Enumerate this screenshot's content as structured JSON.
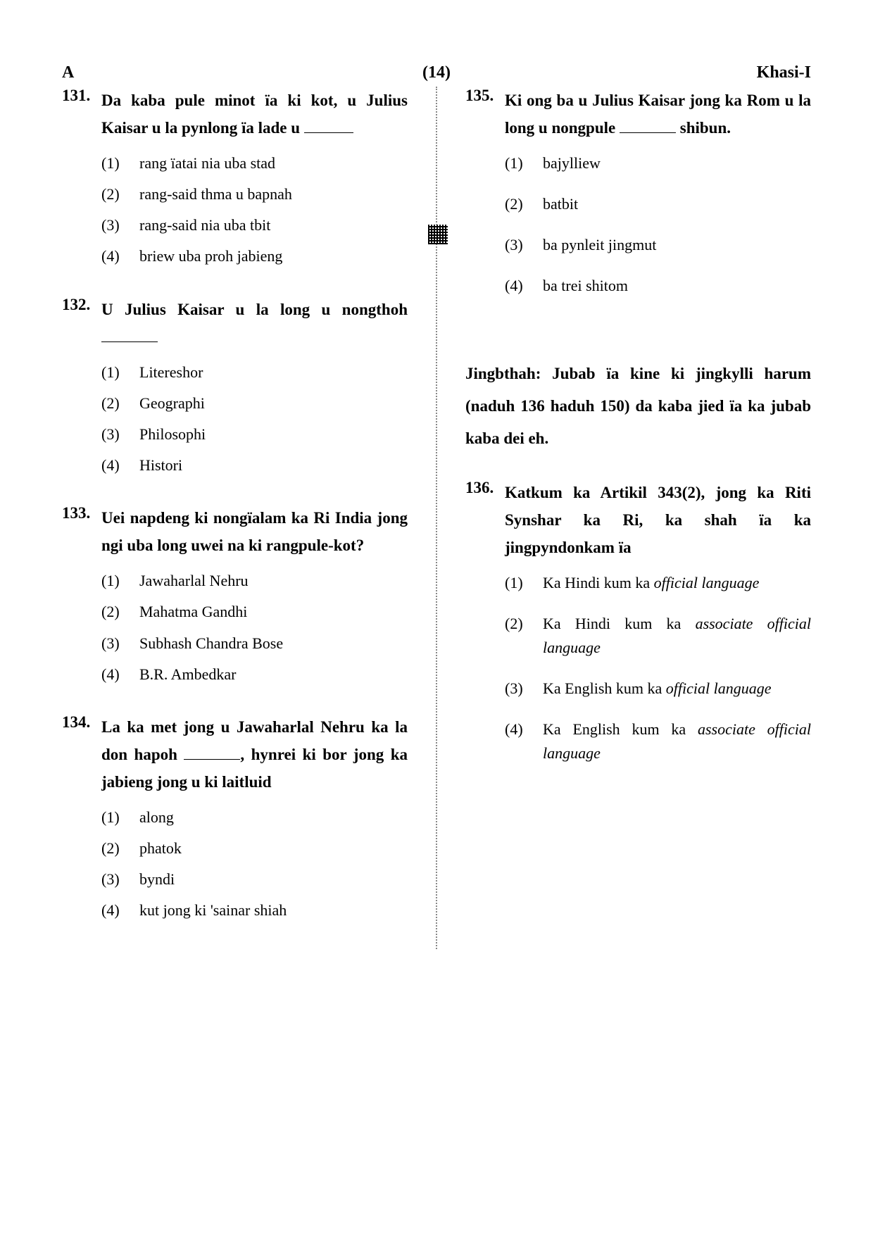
{
  "header": {
    "left": "A",
    "center": "(14)",
    "right": "Khasi-I"
  },
  "left_column": [
    {
      "num": "131.",
      "text_html": "Da kaba pule minot ïa ki kot, u Julius Kaisar u la pynlong ïa lade u <span class=\"blank\" style=\"width:70px\"></span>",
      "options": [
        "rang ïatai nia uba stad",
        "rang-said thma u bapnah",
        "rang-said nia uba tbit",
        "briew uba proh jabieng"
      ]
    },
    {
      "num": "132.",
      "text_html": "U Julius Kaisar u la long u nongthoh <span class=\"blank\" style=\"width:80px\"></span>",
      "options": [
        "Litereshor",
        "Geographi",
        "Philosophi",
        "Histori"
      ]
    },
    {
      "num": "133.",
      "text_html": "Uei napdeng ki nongïalam ka Ri India jong ngi uba long uwei na ki rangpule-kot?",
      "options": [
        "Jawaharlal Nehru",
        "Mahatma Gandhi",
        "Subhash Chandra Bose",
        "B.R. Ambedkar"
      ]
    },
    {
      "num": "134.",
      "text_html": "La ka met jong u Jawaharlal Nehru ka la don hapoh <span class=\"blank\" style=\"width:80px\"></span>, hynrei ki bor jong ka jabieng jong u ki laitluid",
      "options": [
        "along",
        "phatok",
        "byndi",
        "kut jong ki 'sainar shiah"
      ]
    }
  ],
  "right_column": {
    "questions_top": [
      {
        "num": "135.",
        "text_html": "Ki ong ba u Julius Kaisar jong ka Rom u la long u nongpule <span class=\"blank\" style=\"width:80px\"></span> shibun.",
        "options": [
          "bajylliew",
          "batbit",
          "ba pynleit jingmut",
          "ba trei shitom"
        ],
        "spaced": true
      }
    ],
    "instruction": "Jingbthah: Jubab ïa kine ki jingkylli harum (naduh 136 haduh 150) da kaba jied ïa ka jubab kaba dei eh.",
    "questions_bottom": [
      {
        "num": "136.",
        "text_html": "Katkum ka Artikil 343(2), jong ka Riti Synshar ka Ri, ka shah ïa ka jingpyndonkam ïa",
        "options_html": [
          "Ka Hindi kum ka <span class=\"italic\">official language</span>",
          "Ka Hindi kum ka <span class=\"italic\">associate official language</span>",
          "Ka English kum ka <span class=\"italic\">official language</span>",
          "Ka English kum ka <span class=\"italic\">associate official language</span>"
        ],
        "spaced": true
      }
    ]
  }
}
